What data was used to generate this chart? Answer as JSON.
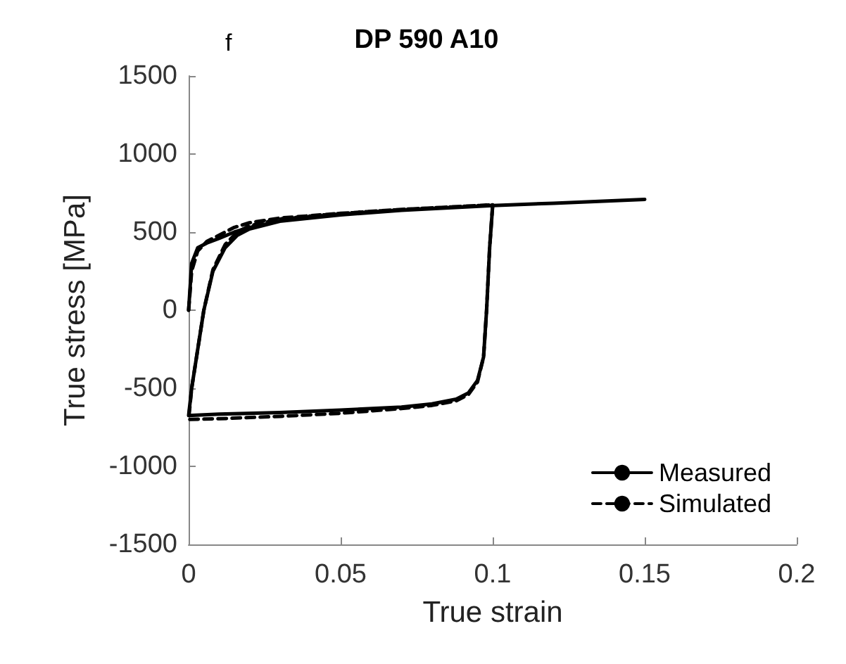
{
  "chart_data": {
    "type": "line",
    "title": "DP 590 A10",
    "xlabel": "True strain",
    "ylabel": "True stress [MPa]",
    "annotations": [
      "f"
    ],
    "xlim": [
      0,
      0.2
    ],
    "xticks": [
      0,
      0.05,
      0.1,
      0.15,
      0.2
    ],
    "ylim": [
      -1500,
      1500
    ],
    "yticks": [
      -1500,
      -1000,
      -500,
      0,
      500,
      1000,
      1500
    ],
    "grid": false,
    "legend": "bottom right",
    "marker": "none",
    "series": [
      {
        "name": "Measured",
        "color": "#000000",
        "line_style": "solid",
        "x": [
          0,
          0.001,
          0.003,
          0.006,
          0.01,
          0.015,
          0.02,
          0.03,
          0.05,
          0.07,
          0.09,
          0.1,
          0.099,
          0.098,
          0.097,
          0.095,
          0.092,
          0.088,
          0.08,
          0.07,
          0.05,
          0.03,
          0.01,
          0,
          0.001,
          0.003,
          0.005,
          0.008,
          0.012,
          0.016,
          0.02,
          0.03,
          0.05,
          0.07,
          0.1,
          0.12,
          0.15
        ],
        "values": [
          0,
          300,
          400,
          430,
          460,
          500,
          530,
          570,
          610,
          640,
          660,
          670,
          400,
          0,
          -300,
          -450,
          -530,
          -570,
          -600,
          -620,
          -640,
          -655,
          -665,
          -675,
          -500,
          -250,
          0,
          250,
          400,
          480,
          520,
          570,
          610,
          640,
          670,
          685,
          710
        ]
      },
      {
        "name": "Simulated",
        "color": "#000000",
        "line_style": "dashed",
        "x": [
          0,
          0.001,
          0.003,
          0.006,
          0.01,
          0.015,
          0.02,
          0.03,
          0.05,
          0.07,
          0.09,
          0.1,
          0.099,
          0.098,
          0.097,
          0.095,
          0.092,
          0.088,
          0.08,
          0.07,
          0.05,
          0.03,
          0.01,
          0,
          0.001,
          0.003,
          0.005,
          0.008,
          0.012,
          0.016,
          0.02,
          0.03,
          0.05,
          0.07,
          0.1
        ],
        "values": [
          0,
          250,
          380,
          440,
          480,
          530,
          560,
          590,
          620,
          645,
          665,
          675,
          400,
          0,
          -300,
          -460,
          -540,
          -580,
          -610,
          -630,
          -660,
          -680,
          -695,
          -700,
          -500,
          -250,
          0,
          260,
          420,
          500,
          540,
          585,
          620,
          645,
          675
        ]
      }
    ]
  }
}
